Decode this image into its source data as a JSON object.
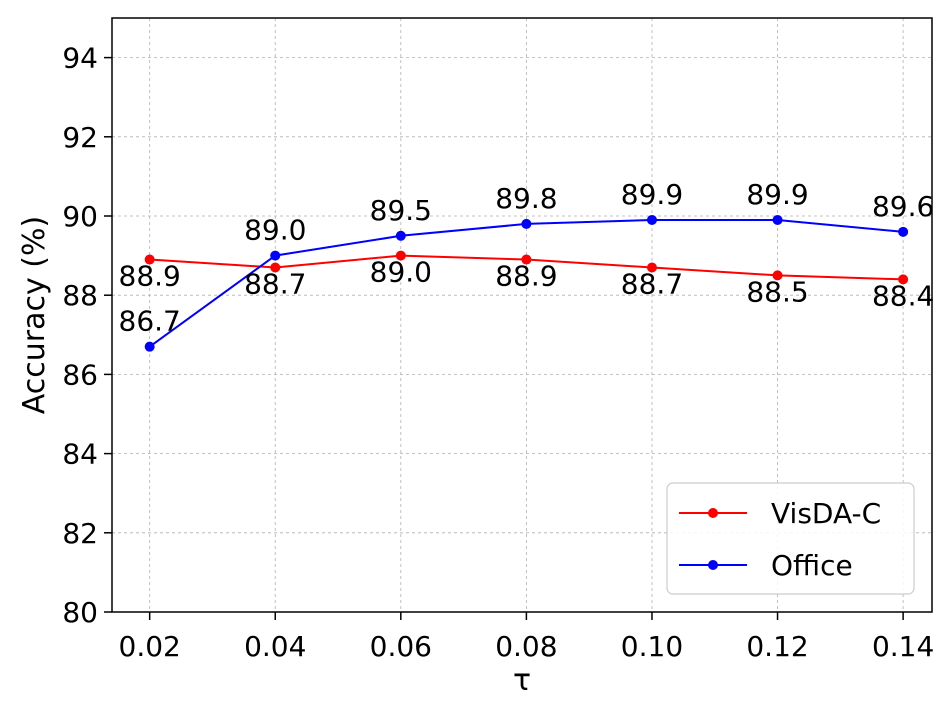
{
  "chart_data": {
    "type": "line",
    "x": [
      0.02,
      0.04,
      0.06,
      0.08,
      0.1,
      0.12,
      0.14
    ],
    "x_tick_labels": [
      "0.02",
      "0.04",
      "0.06",
      "0.08",
      "0.10",
      "0.12",
      "0.14"
    ],
    "y_ticks": [
      80,
      82,
      84,
      86,
      88,
      90,
      92,
      94
    ],
    "xlabel": "τ",
    "ylabel": "Accuracy (%)",
    "xlim": [
      0.014,
      0.1446
    ],
    "ylim": [
      80,
      95
    ],
    "grid": true,
    "legend_position": "bottom-right",
    "series": [
      {
        "name": "VisDA-C",
        "color": "#ff0000",
        "values": [
          88.9,
          88.7,
          89.0,
          88.9,
          88.7,
          88.5,
          88.4
        ],
        "labels": [
          "88.9",
          "88.7",
          "89.0",
          "88.9",
          "88.7",
          "88.5",
          "88.4"
        ],
        "label_position": "below"
      },
      {
        "name": "Office",
        "color": "#0000ff",
        "values": [
          86.7,
          89.0,
          89.5,
          89.8,
          89.9,
          89.9,
          89.6
        ],
        "labels": [
          "86.7",
          "89.0",
          "89.5",
          "89.8",
          "89.9",
          "89.9",
          "89.6"
        ],
        "label_position": "above"
      }
    ]
  }
}
